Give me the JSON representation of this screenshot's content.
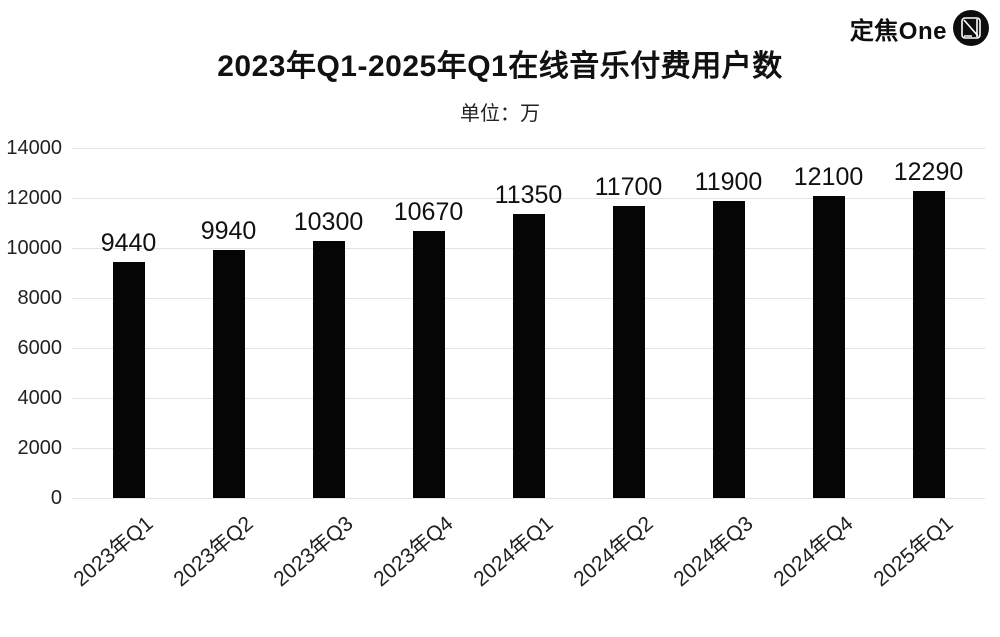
{
  "brand": {
    "name": "定焦One",
    "icon": "dingjiao-one-logo-icon"
  },
  "chart_data": {
    "type": "bar",
    "title": "2023年Q1-2025年Q1在线音乐付费用户数",
    "subtitle": "单位：万",
    "categories": [
      "2023年Q1",
      "2023年Q2",
      "2023年Q3",
      "2023年Q4",
      "2024年Q1",
      "2024年Q2",
      "2024年Q3",
      "2024年Q4",
      "2025年Q1"
    ],
    "values": [
      9440,
      9940,
      10300,
      10670,
      11350,
      11700,
      11900,
      12100,
      12290
    ],
    "value_labels_shown": true,
    "xlabel": "",
    "ylabel": "",
    "ylim": [
      0,
      14000
    ],
    "yticks": [
      0,
      2000,
      4000,
      6000,
      8000,
      10000,
      12000,
      14000
    ],
    "grid": "horizontal",
    "legend": "none",
    "bar_color": "#050505",
    "grid_color": "#e3e3e3",
    "text_color": "#1a1a1a",
    "background_color": "#ffffff"
  }
}
